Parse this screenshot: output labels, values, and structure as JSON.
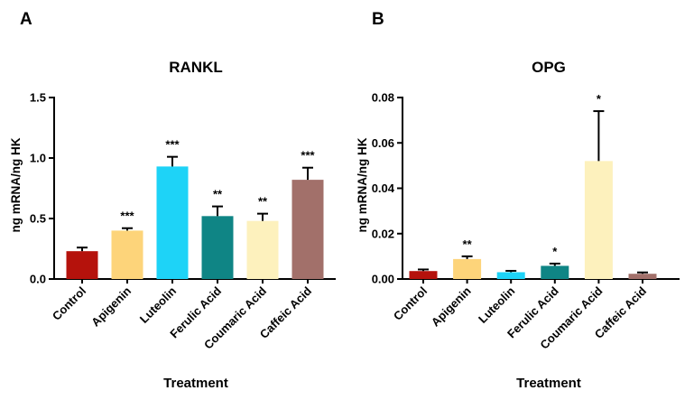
{
  "chart_data": [
    {
      "panel": "A",
      "type": "bar",
      "title": "RANKL",
      "xlabel": "Treatment",
      "ylabel": "ng mRNA/ng HK",
      "ylim": [
        0,
        1.5
      ],
      "yticks": [
        {
          "value": 0,
          "label": "0.0"
        },
        {
          "value": 0.5,
          "label": "0.5"
        },
        {
          "value": 1.0,
          "label": "1.0"
        },
        {
          "value": 1.5,
          "label": "1.5"
        }
      ],
      "categories": [
        "Control",
        "Apigenin",
        "Luteolin",
        "Ferulic Acid",
        "Coumaric Acid",
        "Caffeic Acid"
      ],
      "values": [
        0.23,
        0.4,
        0.93,
        0.52,
        0.48,
        0.82
      ],
      "errors": [
        0.03,
        0.02,
        0.08,
        0.08,
        0.06,
        0.1
      ],
      "significance": [
        "",
        "***",
        "***",
        "**",
        "**",
        "***"
      ],
      "colors": [
        "#b5120c",
        "#fdd47a",
        "#1ed3f7",
        "#0f8585",
        "#fdf1bd",
        "#a2706a"
      ]
    },
    {
      "panel": "B",
      "type": "bar",
      "title": "OPG",
      "xlabel": "Treatment",
      "ylabel": "ng mRNA/ng HK",
      "ylim": [
        0,
        0.08
      ],
      "yticks": [
        {
          "value": 0,
          "label": "0.00"
        },
        {
          "value": 0.02,
          "label": "0.02"
        },
        {
          "value": 0.04,
          "label": "0.04"
        },
        {
          "value": 0.06,
          "label": "0.06"
        },
        {
          "value": 0.08,
          "label": "0.08"
        }
      ],
      "categories": [
        "Control",
        "Apigenin",
        "Luteolin",
        "Ferulic Acid",
        "Coumaric Acid",
        "Caffeic Acid"
      ],
      "values": [
        0.0035,
        0.0088,
        0.003,
        0.0058,
        0.052,
        0.0023
      ],
      "errors": [
        0.0007,
        0.0012,
        0.0006,
        0.001,
        0.022,
        0.0006
      ],
      "significance": [
        "",
        "**",
        "",
        "*",
        "*",
        ""
      ],
      "colors": [
        "#b5120c",
        "#fdd47a",
        "#1ed3f7",
        "#0f8585",
        "#fdf1bd",
        "#a2706a"
      ]
    }
  ]
}
